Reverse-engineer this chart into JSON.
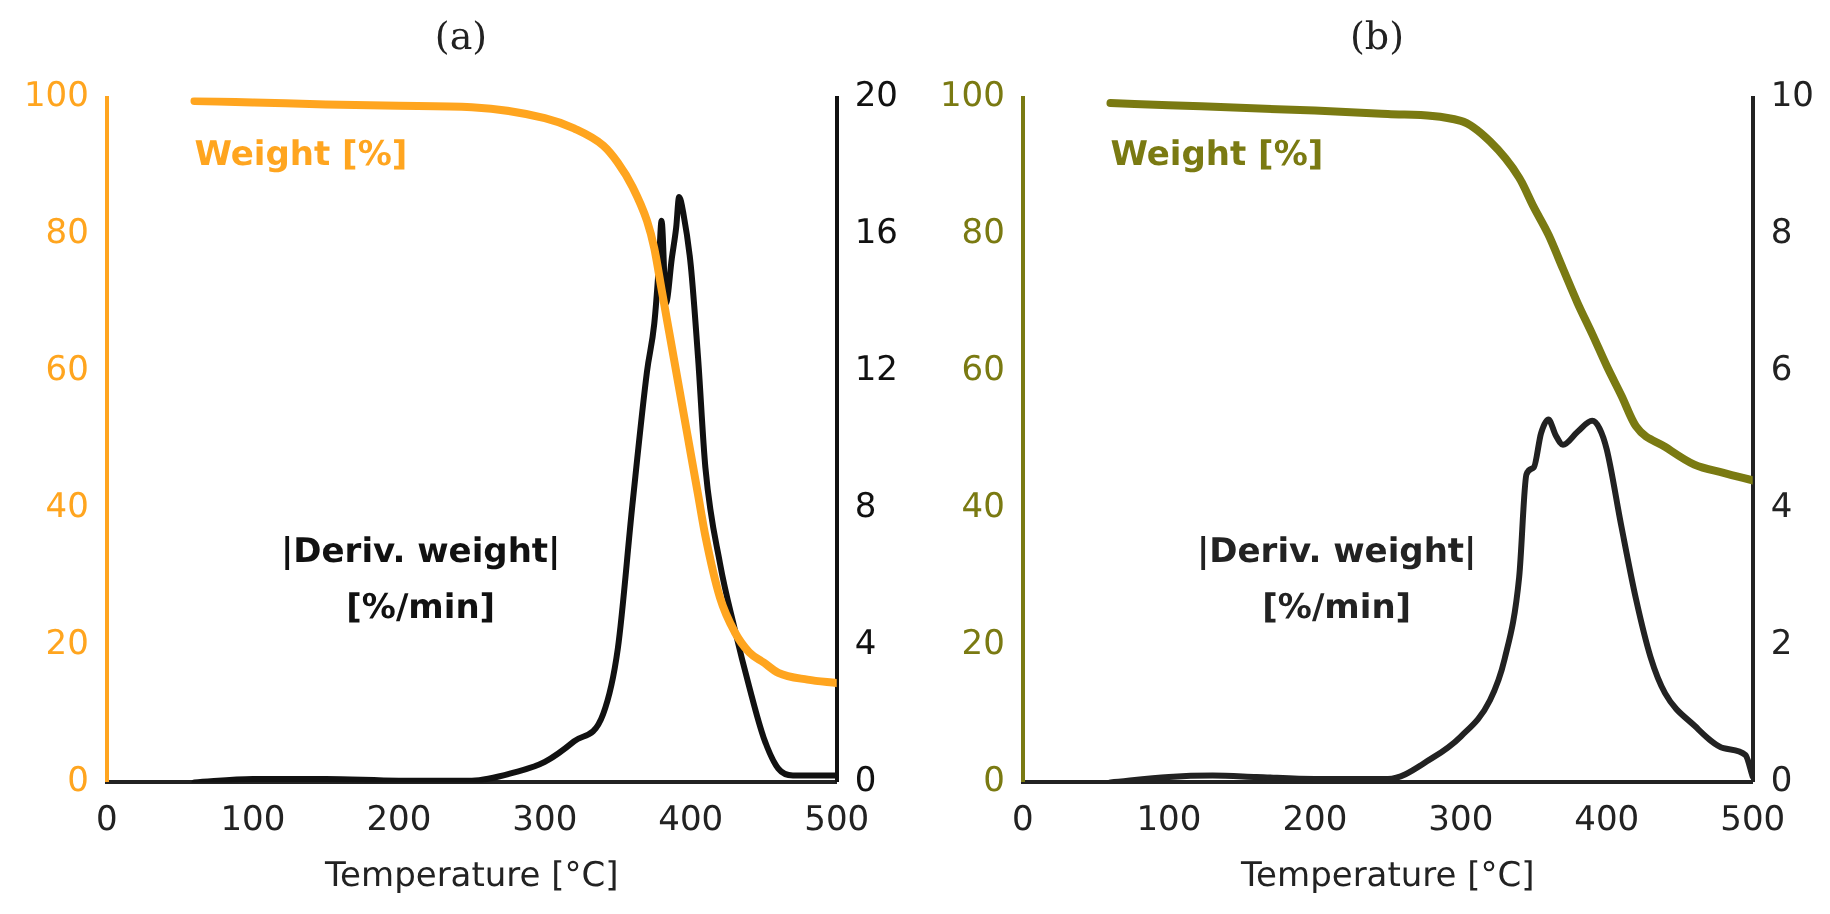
{
  "chart_data": [
    {
      "type": "line",
      "title": "(a)",
      "xlabel": "Temperature [°C]",
      "xlim": [
        0,
        500
      ],
      "xticks": [
        0,
        100,
        200,
        300,
        400,
        500
      ],
      "ylim": [
        0,
        100
      ],
      "yticks": [
        0,
        20,
        40,
        60,
        80,
        100
      ],
      "y2lim": [
        0,
        20
      ],
      "y2ticks": [
        0,
        4,
        8,
        12,
        16,
        20
      ],
      "marker": "none",
      "series": [
        {
          "name": "Weight [%]",
          "color": "#ffa51f",
          "axis": "y",
          "x": [
            60,
            100,
            150,
            200,
            250,
            300,
            320,
            340,
            350,
            360,
            370,
            375,
            380,
            385,
            390,
            395,
            400,
            405,
            410,
            420,
            430,
            440,
            450,
            460,
            480,
            500
          ],
          "values": [
            99.5,
            99.3,
            99,
            98.8,
            98.6,
            97,
            95.5,
            93,
            90.5,
            87,
            82,
            78,
            72,
            66,
            60,
            54,
            48,
            42,
            36,
            27,
            22,
            19,
            17.5,
            16,
            15,
            14.5
          ]
        },
        {
          "name": "|Deriv. weight| [%/min]",
          "color": "#111111",
          "axis": "y2",
          "x": [
            60,
            100,
            150,
            200,
            250,
            280,
            300,
            320,
            340,
            350,
            360,
            370,
            375,
            378,
            380,
            383,
            387,
            390,
            392,
            395,
            400,
            405,
            410,
            420,
            430,
            440,
            450,
            460,
            470,
            480,
            490,
            500
          ],
          "values": [
            0,
            0.1,
            0.1,
            0.05,
            0.05,
            0.3,
            0.6,
            1.2,
            2,
            3.9,
            8.1,
            12,
            13.4,
            15,
            16.4,
            14,
            15.3,
            16.2,
            17.1,
            16.6,
            15.1,
            12.4,
            9.2,
            6.4,
            4.5,
            2.8,
            1.3,
            0.4,
            0.2,
            0.2,
            0.2,
            0.2
          ]
        }
      ]
    },
    {
      "type": "line",
      "title": "(b)",
      "xlabel": "Temperature [°C]",
      "xlim": [
        0,
        500
      ],
      "xticks": [
        0,
        100,
        200,
        300,
        400,
        500
      ],
      "ylim": [
        0,
        100
      ],
      "yticks": [
        0,
        20,
        40,
        60,
        80,
        100
      ],
      "y2lim": [
        0,
        10
      ],
      "y2ticks": [
        0,
        2,
        4,
        6,
        8,
        10
      ],
      "marker": "none",
      "series": [
        {
          "name": "Weight [%]",
          "color": "#7a7a12",
          "axis": "y",
          "x": [
            60,
            100,
            200,
            250,
            300,
            320,
            340,
            350,
            360,
            370,
            380,
            390,
            400,
            410,
            420,
            440,
            460,
            480,
            500
          ],
          "values": [
            99.2,
            98.9,
            98.1,
            97.6,
            96.6,
            93.6,
            88.3,
            84,
            80,
            75,
            70,
            65.5,
            60.8,
            56.5,
            52,
            49,
            46.4,
            45.2,
            44.1
          ]
        },
        {
          "name": "|Deriv. weight| [%/min]",
          "color": "#222222",
          "axis": "y2",
          "x": [
            60,
            100,
            130,
            160,
            200,
            250,
            280,
            300,
            320,
            330,
            340,
            345,
            350,
            355,
            360,
            365,
            370,
            380,
            390,
            395,
            400,
            410,
            420,
            430,
            440,
            460,
            480,
            495,
            500
          ],
          "values": [
            0,
            0.08,
            0.1,
            0.08,
            0.05,
            0.05,
            0.35,
            0.67,
            1.2,
            1.8,
            3,
            4.5,
            4.6,
            5.1,
            5.3,
            5.07,
            4.93,
            5.12,
            5.28,
            5.17,
            4.86,
            3.74,
            2.68,
            1.83,
            1.3,
            0.83,
            0.5,
            0.4,
            0.08
          ]
        }
      ]
    }
  ]
}
